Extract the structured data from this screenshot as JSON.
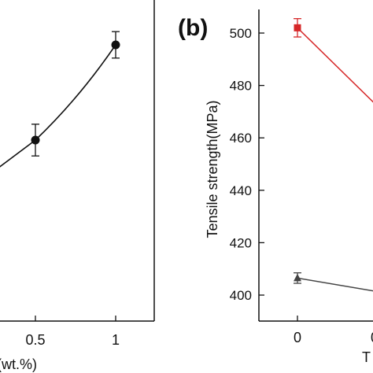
{
  "chart_data": [
    {
      "panel": "a",
      "type": "line",
      "x": [
        0.5,
        1
      ],
      "series": [
        {
          "values": [
            460,
            496
          ],
          "error": [
            6,
            5
          ],
          "color": "#111111",
          "marker": "circle",
          "line_enters_from_left": true
        }
      ],
      "xticks": [
        {
          "value": 0.5,
          "label": "0.5"
        },
        {
          "value": 1,
          "label": "1"
        }
      ],
      "xlabel": "(wt.%)",
      "ylabel": "",
      "title": ""
    },
    {
      "panel": "b",
      "panel_label": "(b)",
      "type": "line",
      "x": [
        0
      ],
      "ylim": [
        395,
        513
      ],
      "yticks": [
        400,
        420,
        440,
        460,
        480,
        500
      ],
      "xticks": [
        {
          "value": 0,
          "label": "0"
        }
      ],
      "ylabel": "Tensile strength(MPa)",
      "xlabel": "T",
      "series": [
        {
          "values": [
            502
          ],
          "error": [
            3.5
          ],
          "color": "#d62728",
          "marker": "square",
          "continues_right": true
        },
        {
          "values": [
            406.5
          ],
          "error": [
            2
          ],
          "color": "#444444",
          "marker": "triangle",
          "continues_right": true
        }
      ]
    }
  ]
}
